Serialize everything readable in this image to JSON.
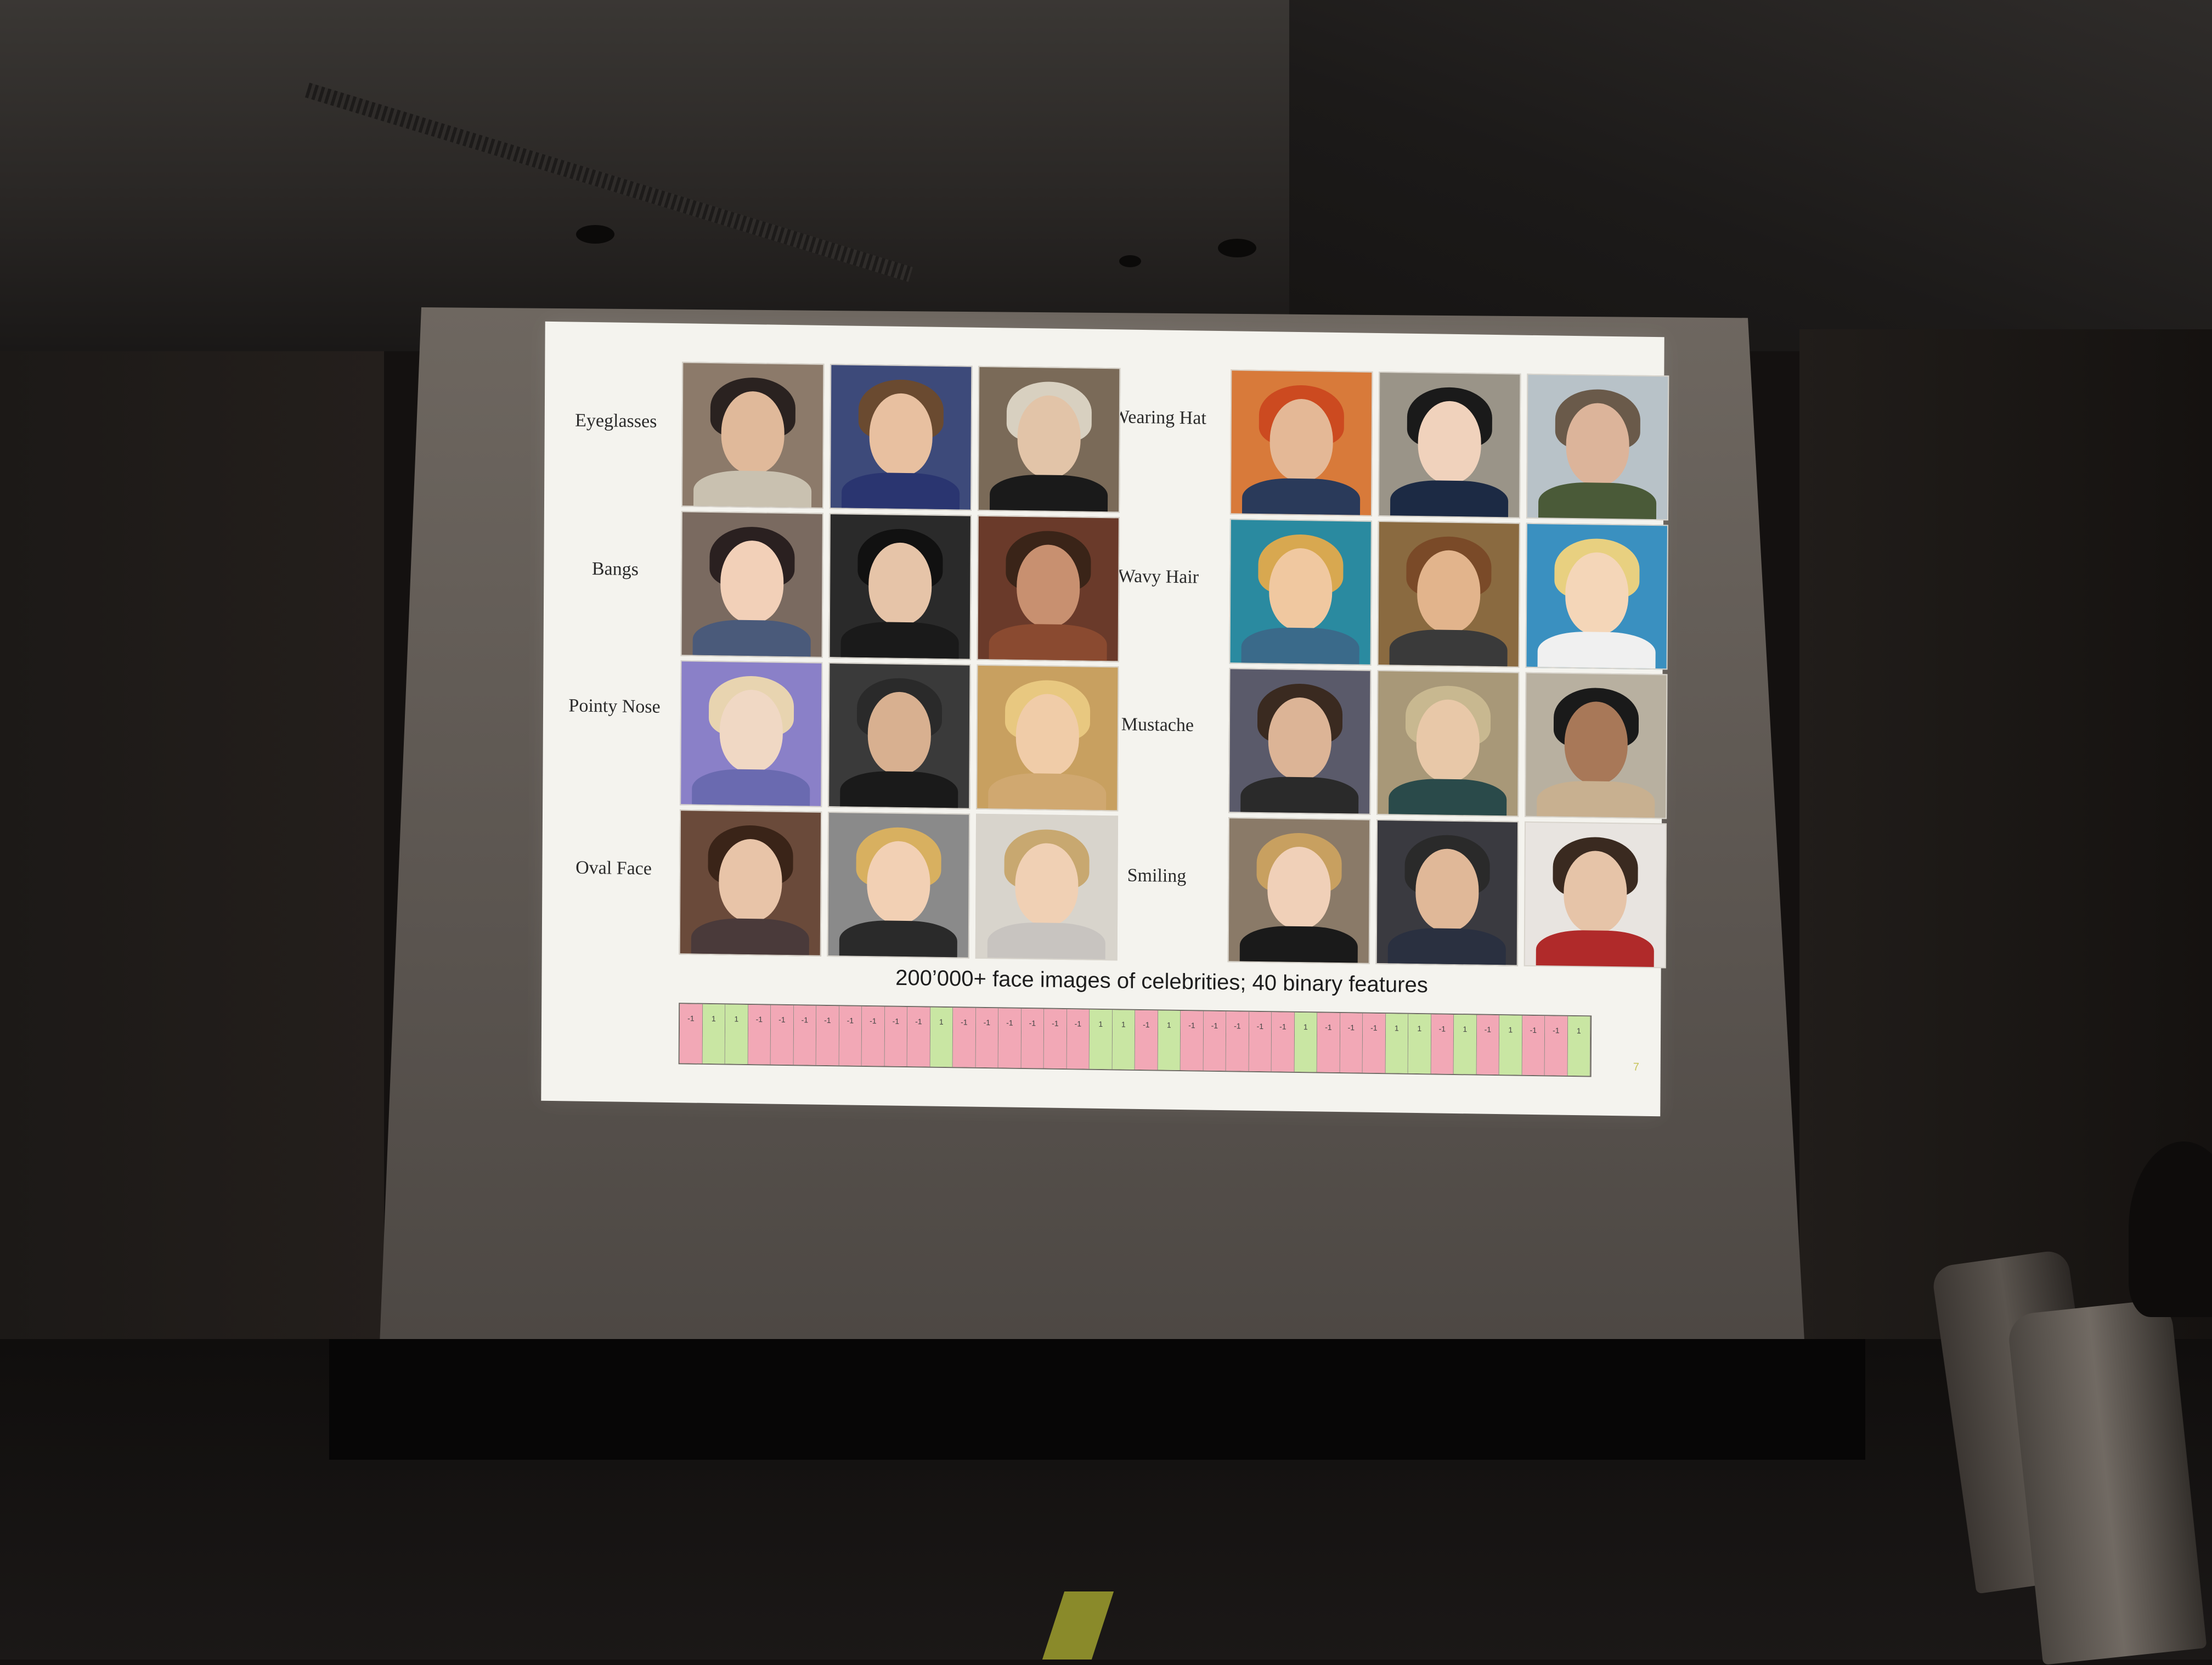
{
  "slide": {
    "rows": [
      {
        "left_label": "Eyeglasses",
        "right_label": "Wearing Hat"
      },
      {
        "left_label": "Bangs",
        "right_label": "Wavy Hair"
      },
      {
        "left_label": "Pointy Nose",
        "right_label": "Mustache"
      },
      {
        "left_label": "Oval Face",
        "right_label": "Smiling"
      }
    ],
    "caption": "200’000+ face images of celebrities;  40 binary features",
    "features": [
      "-1",
      "1",
      "1",
      "-1",
      "-1",
      "-1",
      "-1",
      "-1",
      "-1",
      "-1",
      "-1",
      "1",
      "-1",
      "-1",
      "-1",
      "-1",
      "-1",
      "-1",
      "1",
      "1",
      "-1",
      "1",
      "-1",
      "-1",
      "-1",
      "-1",
      "-1",
      "1",
      "-1",
      "-1",
      "-1",
      "1",
      "1",
      "-1",
      "1",
      "-1",
      "1",
      "-1",
      "-1",
      "1"
    ],
    "page_number": "7"
  },
  "colors": {
    "feature_positive": "#c9e6a3",
    "feature_negative": "#f2a8b6"
  }
}
